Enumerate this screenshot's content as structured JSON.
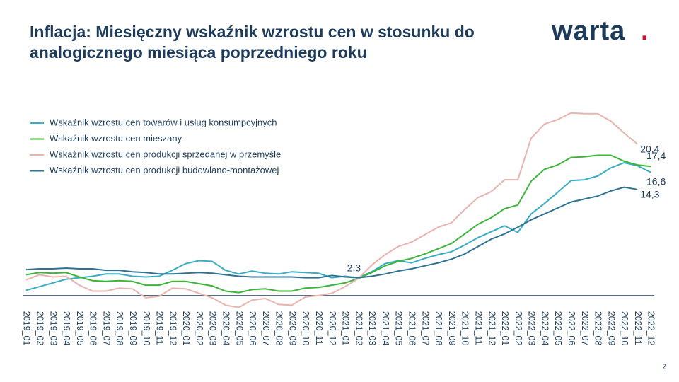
{
  "title": [
    "Inflacja: Miesięczny wskaźnik wzrostu cen w stosunku do",
    "analogicznego miesiąca poprzedniego roku"
  ],
  "logo": {
    "text": "warta",
    "dot": "."
  },
  "page_number": "2",
  "chart_data": {
    "type": "line",
    "categories": [
      "2019_01",
      "2019_02",
      "2019_03",
      "2019_04",
      "2019_05",
      "2019_06",
      "2019_07",
      "2019_08",
      "2019_09",
      "2019_10",
      "2019_11",
      "2019_12",
      "2020_01",
      "2020_02",
      "2020_03",
      "2020_04",
      "2020_05",
      "2020_06",
      "2020_07",
      "2020_08",
      "2020_09",
      "2020_10",
      "2020_11",
      "2020_12",
      "2021_01",
      "2021_02",
      "2021_03",
      "2021_04",
      "2021_05",
      "2021_06",
      "2021_07",
      "2021_08",
      "2021_09",
      "2021_10",
      "2021_11",
      "2021_12",
      "2022_01",
      "2022_02",
      "2022_03",
      "2022_04",
      "2022_05",
      "2022_06",
      "2022_07",
      "2022_08",
      "2022_09",
      "2022_10",
      "2022_11",
      "2022_12"
    ],
    "ylim": [
      -2.5,
      25
    ],
    "series": [
      {
        "name": "Wskaźnik wzrostu cen towarów i usług konsumpcyjnych",
        "color": "#3aacc4",
        "values": [
          0.7,
          1.2,
          1.7,
          2.2,
          2.4,
          2.6,
          2.9,
          2.9,
          2.6,
          2.5,
          2.6,
          3.4,
          4.3,
          4.7,
          4.6,
          3.4,
          2.9,
          3.3,
          3.0,
          2.9,
          3.2,
          3.1,
          3.0,
          2.4,
          2.6,
          2.4,
          3.2,
          4.3,
          4.7,
          4.4,
          5.0,
          5.5,
          5.9,
          6.8,
          7.8,
          8.6,
          9.4,
          8.5,
          11.0,
          12.4,
          13.9,
          15.5,
          15.6,
          16.1,
          17.2,
          17.9,
          17.5,
          16.6
        ],
        "value_labels": [
          null,
          null,
          null,
          null,
          null,
          null,
          null,
          null,
          null,
          null,
          null,
          null,
          null,
          null,
          null,
          null,
          null,
          null,
          null,
          null,
          null,
          null,
          null,
          null,
          null,
          null,
          null,
          null,
          null,
          null,
          null,
          null,
          null,
          null,
          null,
          null,
          null,
          null,
          null,
          null,
          null,
          null,
          null,
          null,
          null,
          null,
          null,
          "16,6"
        ]
      },
      {
        "name": "Wskaźnik wzrostu cen mieszany",
        "color": "#3db53a",
        "values": [
          2.8,
          3.1,
          3.0,
          3.1,
          2.5,
          2.0,
          1.9,
          2.0,
          1.9,
          1.4,
          1.4,
          1.9,
          1.9,
          1.6,
          1.3,
          0.6,
          0.4,
          0.8,
          0.9,
          0.6,
          0.6,
          1.0,
          1.1,
          1.4,
          1.7,
          2.3,
          3.1,
          4.0,
          4.6,
          5.0,
          5.6,
          6.3,
          7.0,
          8.3,
          9.6,
          10.5,
          11.7,
          12.2,
          15.4,
          17.0,
          17.6,
          18.6,
          18.7,
          18.9,
          18.9,
          18.1,
          17.6,
          17.4
        ],
        "value_labels": [
          null,
          null,
          null,
          null,
          null,
          null,
          null,
          null,
          null,
          null,
          null,
          null,
          null,
          null,
          null,
          null,
          null,
          null,
          null,
          null,
          null,
          null,
          null,
          null,
          null,
          "2,3",
          null,
          null,
          null,
          null,
          null,
          null,
          null,
          null,
          null,
          null,
          null,
          null,
          null,
          null,
          null,
          null,
          null,
          null,
          null,
          null,
          null,
          "17,4"
        ]
      },
      {
        "name": "Wskaźnik wzrostu cen produkcji sprzedanej w przemyśle",
        "color": "#e8b4ae",
        "values": [
          2.1,
          2.8,
          2.5,
          2.6,
          1.4,
          0.6,
          0.6,
          1.0,
          0.9,
          -0.3,
          -0.1,
          1.0,
          0.9,
          0.3,
          -0.3,
          -1.3,
          -1.6,
          -0.6,
          -0.4,
          -1.2,
          -1.3,
          -0.2,
          0.0,
          0.3,
          1.2,
          2.3,
          4.1,
          5.5,
          6.6,
          7.2,
          8.2,
          9.2,
          9.8,
          11.6,
          13.2,
          14.0,
          15.6,
          15.6,
          21.2,
          23.1,
          23.7,
          24.6,
          24.5,
          24.5,
          23.5,
          21.9,
          20.4,
          null
        ],
        "value_labels": [
          null,
          null,
          null,
          null,
          null,
          null,
          null,
          null,
          null,
          null,
          null,
          null,
          null,
          null,
          null,
          null,
          null,
          null,
          null,
          null,
          null,
          null,
          null,
          null,
          null,
          null,
          null,
          null,
          null,
          null,
          null,
          null,
          null,
          null,
          null,
          null,
          null,
          null,
          null,
          null,
          null,
          null,
          null,
          null,
          null,
          null,
          "20,4",
          null
        ]
      },
      {
        "name": "Wskaźnik wzrostu cen produkcji budowlano-montażowej",
        "color": "#2f7394",
        "values": [
          3.5,
          3.6,
          3.6,
          3.7,
          3.6,
          3.6,
          3.4,
          3.4,
          3.2,
          3.1,
          2.9,
          2.9,
          3.0,
          3.1,
          3.0,
          2.8,
          2.6,
          2.5,
          2.5,
          2.5,
          2.5,
          2.4,
          2.4,
          2.7,
          2.5,
          2.4,
          2.6,
          2.9,
          3.3,
          3.6,
          4.0,
          4.4,
          4.9,
          5.6,
          6.6,
          7.6,
          8.3,
          9.2,
          10.2,
          11.0,
          11.8,
          12.6,
          13.0,
          13.4,
          14.1,
          14.6,
          14.3,
          null
        ],
        "value_labels": [
          null,
          null,
          null,
          null,
          null,
          null,
          null,
          null,
          null,
          null,
          null,
          null,
          null,
          null,
          null,
          null,
          null,
          null,
          null,
          null,
          null,
          null,
          null,
          null,
          null,
          null,
          null,
          null,
          null,
          null,
          null,
          null,
          null,
          null,
          null,
          null,
          null,
          null,
          null,
          null,
          null,
          null,
          null,
          null,
          null,
          null,
          "14,3",
          null
        ]
      }
    ]
  }
}
